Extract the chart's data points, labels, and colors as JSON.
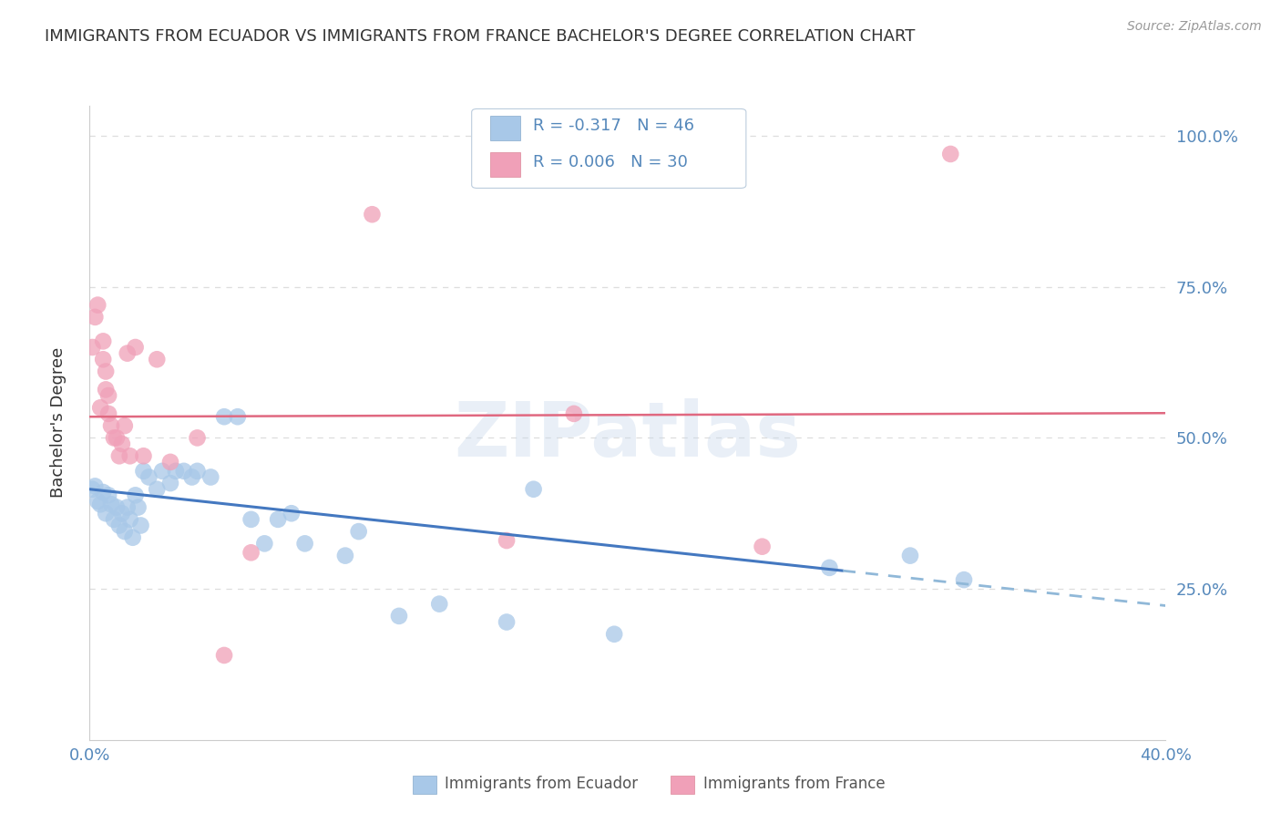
{
  "title": "IMMIGRANTS FROM ECUADOR VS IMMIGRANTS FROM FRANCE BACHELOR'S DEGREE CORRELATION CHART",
  "source": "Source: ZipAtlas.com",
  "ylabel": "Bachelor's Degree",
  "legend_label1": "R = -0.317   N = 46",
  "legend_label2": "R = 0.006   N = 30",
  "legend_series1": "Immigrants from Ecuador",
  "legend_series2": "Immigrants from France",
  "right_ytick_labels": [
    "100.0%",
    "75.0%",
    "50.0%",
    "25.0%"
  ],
  "right_ytick_values": [
    1.0,
    0.75,
    0.5,
    0.25
  ],
  "xlim": [
    0.0,
    0.4
  ],
  "ylim": [
    0.0,
    1.05
  ],
  "blue_color": "#A8C8E8",
  "pink_color": "#F0A0B8",
  "regression_blue_solid": "#4478C0",
  "regression_pink_solid": "#E06880",
  "regression_blue_dash": "#90B8D8",
  "blue_dots_x": [
    0.001,
    0.002,
    0.003,
    0.004,
    0.005,
    0.006,
    0.007,
    0.008,
    0.009,
    0.01,
    0.011,
    0.012,
    0.013,
    0.014,
    0.015,
    0.016,
    0.017,
    0.018,
    0.019,
    0.02,
    0.022,
    0.025,
    0.027,
    0.03,
    0.032,
    0.035,
    0.038,
    0.04,
    0.045,
    0.05,
    0.055,
    0.06,
    0.065,
    0.07,
    0.075,
    0.08,
    0.095,
    0.1,
    0.115,
    0.13,
    0.155,
    0.165,
    0.195,
    0.275,
    0.305,
    0.325
  ],
  "blue_dots_y": [
    0.415,
    0.42,
    0.395,
    0.39,
    0.41,
    0.375,
    0.405,
    0.39,
    0.365,
    0.385,
    0.355,
    0.375,
    0.345,
    0.385,
    0.365,
    0.335,
    0.405,
    0.385,
    0.355,
    0.445,
    0.435,
    0.415,
    0.445,
    0.425,
    0.445,
    0.445,
    0.435,
    0.445,
    0.435,
    0.535,
    0.535,
    0.365,
    0.325,
    0.365,
    0.375,
    0.325,
    0.305,
    0.345,
    0.205,
    0.225,
    0.195,
    0.415,
    0.175,
    0.285,
    0.305,
    0.265
  ],
  "pink_dots_x": [
    0.001,
    0.002,
    0.003,
    0.004,
    0.005,
    0.005,
    0.006,
    0.006,
    0.007,
    0.007,
    0.008,
    0.009,
    0.01,
    0.011,
    0.012,
    0.013,
    0.014,
    0.015,
    0.017,
    0.02,
    0.025,
    0.03,
    0.04,
    0.05,
    0.06,
    0.105,
    0.155,
    0.18,
    0.25,
    0.32
  ],
  "pink_dots_y": [
    0.65,
    0.7,
    0.72,
    0.55,
    0.63,
    0.66,
    0.61,
    0.58,
    0.57,
    0.54,
    0.52,
    0.5,
    0.5,
    0.47,
    0.49,
    0.52,
    0.64,
    0.47,
    0.65,
    0.47,
    0.63,
    0.46,
    0.5,
    0.14,
    0.31,
    0.87,
    0.33,
    0.54,
    0.32,
    0.97
  ],
  "grid_color": "#DDDDDD",
  "background_color": "#FFFFFF",
  "title_color": "#333333",
  "right_axis_color": "#5588BB",
  "text_watermark": "ZIPatlas"
}
